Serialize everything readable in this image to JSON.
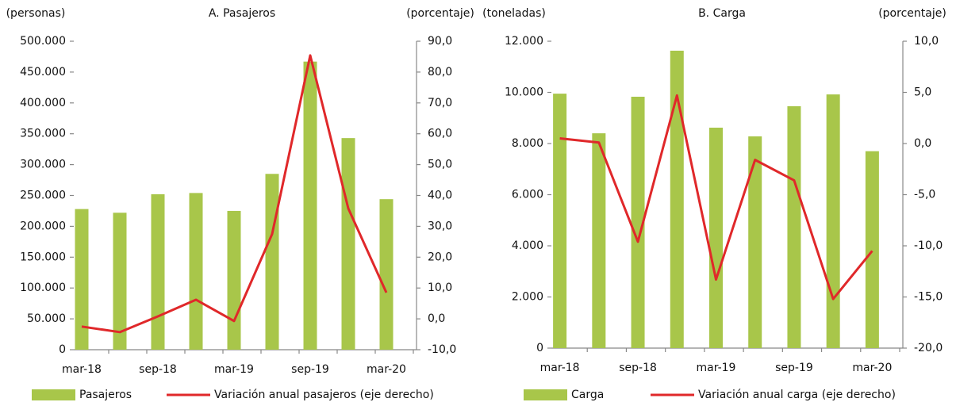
{
  "chart_data": [
    {
      "type": "bar",
      "title": "A. Pasajeros",
      "ylabel": "(personas)",
      "y2label": "(porcentaje)",
      "categories": [
        "mar-18",
        null,
        "sep-18",
        null,
        "mar-19",
        null,
        "sep-19",
        null,
        "mar-20"
      ],
      "series": [
        {
          "name": "Pasajeros",
          "type": "bar",
          "color": "#a8c64a",
          "values": [
            228000,
            222000,
            252000,
            254000,
            225000,
            285000,
            467000,
            343000,
            244000
          ]
        },
        {
          "name": "Variación anual pasajeros (eje derecho)",
          "type": "line",
          "axis": "y2",
          "color": "#e0282a",
          "values": [
            -2.5,
            -4.3,
            0.8,
            6.2,
            -0.7,
            27.5,
            85.4,
            35.8,
            8.5
          ]
        }
      ],
      "ylim": [
        0,
        500000
      ],
      "yticks": [
        0,
        {
          "value": 50000,
          "label": "50.000"
        },
        {
          "value": 100000,
          "label": "100.000"
        },
        {
          "value": 150000,
          "label": "150.000"
        },
        {
          "value": 200000,
          "label": "200.000"
        },
        {
          "value": 250000,
          "label": "250.000"
        },
        {
          "value": 300000,
          "label": "300.000"
        },
        {
          "value": 350000,
          "label": "350.000"
        },
        {
          "value": 400000,
          "label": "400.000"
        },
        {
          "value": 450000,
          "label": "450.000"
        },
        {
          "value": 500000,
          "label": "500.000"
        }
      ],
      "y2lim": [
        -10,
        90
      ],
      "y2ticks": [
        {
          "value": -10,
          "label": "-10,0"
        },
        {
          "value": 0,
          "label": "0,0"
        },
        {
          "value": 10,
          "label": "10,0"
        },
        {
          "value": 20,
          "label": "20,0"
        },
        {
          "value": 30,
          "label": "30,0"
        },
        {
          "value": 40,
          "label": "40,0"
        },
        {
          "value": 50,
          "label": "50,0"
        },
        {
          "value": 60,
          "label": "60,0"
        },
        {
          "value": 70,
          "label": "70,0"
        },
        {
          "value": 80,
          "label": "80,0"
        },
        {
          "value": 90,
          "label": "90,0"
        }
      ],
      "legend": "bottom"
    },
    {
      "type": "bar",
      "title": "B. Carga",
      "ylabel": "(toneladas)",
      "y2label": "(porcentaje)",
      "categories": [
        "mar-18",
        null,
        "sep-18",
        null,
        "mar-19",
        null,
        "sep-19",
        null,
        "mar-20"
      ],
      "series": [
        {
          "name": "Carga",
          "type": "bar",
          "color": "#a8c64a",
          "values": [
            9950,
            8400,
            9830,
            11630,
            8620,
            8280,
            9460,
            9920,
            7700
          ]
        },
        {
          "name": "Variación anual carga (eje derecho)",
          "type": "line",
          "axis": "y2",
          "color": "#e0282a",
          "values": [
            0.5,
            0.1,
            -9.6,
            4.7,
            -13.3,
            -1.6,
            -3.6,
            -15.2,
            -10.5
          ]
        }
      ],
      "ylim": [
        0,
        12000
      ],
      "yticks": [
        0,
        {
          "value": 2000,
          "label": "2.000"
        },
        {
          "value": 4000,
          "label": "4.000"
        },
        {
          "value": 6000,
          "label": "6.000"
        },
        {
          "value": 8000,
          "label": "8.000"
        },
        {
          "value": 10000,
          "label": "10.000"
        },
        {
          "value": 12000,
          "label": "12.000"
        }
      ],
      "y2lim": [
        -20,
        10
      ],
      "y2ticks": [
        {
          "value": -20,
          "label": "-20,0"
        },
        {
          "value": -15,
          "label": "-15,0"
        },
        {
          "value": -10,
          "label": "-10,0"
        },
        {
          "value": -5,
          "label": "-5,0"
        },
        {
          "value": 0,
          "label": "0,0"
        },
        {
          "value": 5,
          "label": "5,0"
        },
        {
          "value": 10,
          "label": "10,0"
        }
      ],
      "legend": "bottom"
    }
  ]
}
